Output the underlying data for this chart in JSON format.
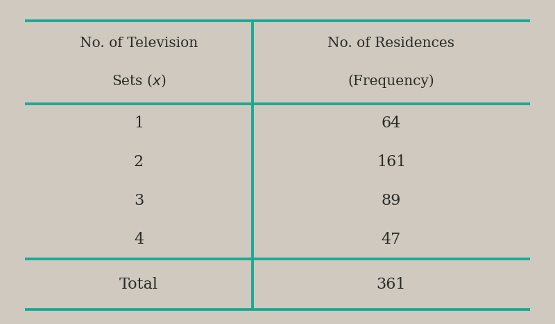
{
  "col1_header_line1": "No. of Television",
  "col1_header_line2": "Sets (",
  "col1_header_italic": "x",
  "col1_header_end": ")",
  "col2_header_line1": "No. of Residences",
  "col2_header_line2": "(Frequency)",
  "rows": [
    [
      "1",
      "64"
    ],
    [
      "2",
      "161"
    ],
    [
      "3",
      "89"
    ],
    [
      "4",
      "47"
    ]
  ],
  "total_label": "Total",
  "total_value": "361",
  "bg_color": "#cfc9c0",
  "line_color": "#1aaa94",
  "text_color": "#2a2a2a",
  "header_fontsize": 14.5,
  "data_fontsize": 16,
  "total_fontsize": 16,
  "line_width": 2.8,
  "fig_width": 8.0,
  "fig_height": 4.68
}
